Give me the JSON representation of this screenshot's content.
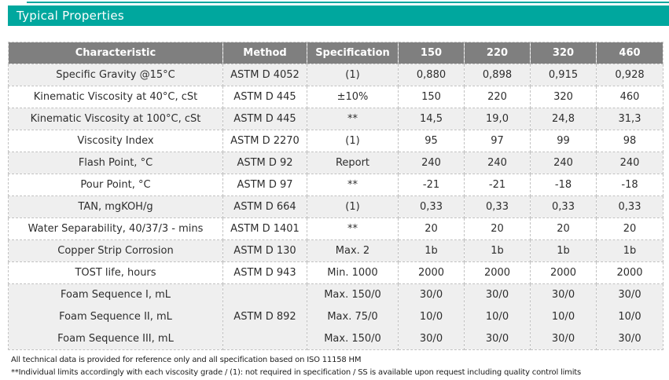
{
  "page": {
    "title": "Typical Properties"
  },
  "colors": {
    "accent_teal": "#00a79e",
    "header_gray": "#7f7f7f",
    "row_alt_gray": "#efefef"
  },
  "table": {
    "columns": [
      "Characteristic",
      "Method",
      "Specification",
      "150",
      "220",
      "320",
      "460"
    ],
    "rows": [
      {
        "characteristic": "Specific Gravity @15°C",
        "method": "ASTM D 4052",
        "specification": "(1)",
        "values": [
          "0,880",
          "0,898",
          "0,915",
          "0,928"
        ]
      },
      {
        "characteristic": "Kinematic Viscosity at 40°C, cSt",
        "method": "ASTM D 445",
        "specification": "±10%",
        "values": [
          "150",
          "220",
          "320",
          "460"
        ]
      },
      {
        "characteristic": "Kinematic Viscosity at 100°C, cSt",
        "method": "ASTM D 445",
        "specification": "**",
        "values": [
          "14,5",
          "19,0",
          "24,8",
          "31,3"
        ]
      },
      {
        "characteristic": "Viscosity Index",
        "method": "ASTM D 2270",
        "specification": "(1)",
        "values": [
          "95",
          "97",
          "99",
          "98"
        ]
      },
      {
        "characteristic": "Flash Point, °C",
        "method": "ASTM D 92",
        "specification": "Report",
        "values": [
          "240",
          "240",
          "240",
          "240"
        ]
      },
      {
        "characteristic": "Pour Point, °C",
        "method": "ASTM D 97",
        "specification": "**",
        "values": [
          "-21",
          "-21",
          "-18",
          "-18"
        ]
      },
      {
        "characteristic": "TAN, mgKOH/g",
        "method": "ASTM D 664",
        "specification": "(1)",
        "values": [
          "0,33",
          "0,33",
          "0,33",
          "0,33"
        ]
      },
      {
        "characteristic": "Water Separability, 40/37/3 - mins",
        "method": "ASTM D 1401",
        "specification": "**",
        "values": [
          "20",
          "20",
          "20",
          "20"
        ]
      },
      {
        "characteristic": "Copper Strip Corrosion",
        "method": "ASTM D 130",
        "specification": "Max. 2",
        "values": [
          "1b",
          "1b",
          "1b",
          "1b"
        ]
      },
      {
        "characteristic": "TOST life, hours",
        "method": "ASTM D 943",
        "specification": "Min. 1000",
        "values": [
          "2000",
          "2000",
          "2000",
          "2000"
        ]
      }
    ],
    "foam_group": {
      "method": "ASTM D 892",
      "rows": [
        {
          "characteristic": "Foam Sequence I, mL",
          "specification": "Max. 150/0",
          "values": [
            "30/0",
            "30/0",
            "30/0",
            "30/0"
          ]
        },
        {
          "characteristic": "Foam Sequence II, mL",
          "specification": "Max. 75/0",
          "values": [
            "10/0",
            "10/0",
            "10/0",
            "10/0"
          ]
        },
        {
          "characteristic": "Foam Sequence III, mL",
          "specification": "Max. 150/0",
          "values": [
            "30/0",
            "30/0",
            "30/0",
            "30/0"
          ]
        }
      ]
    }
  },
  "footnotes": [
    "All technical data is provided for reference only and all specification based on ISO 11158 HM",
    "**Individual limits accordingly with each viscosity grade / (1): not required in specification / SS is available upon request including quality control limits"
  ]
}
